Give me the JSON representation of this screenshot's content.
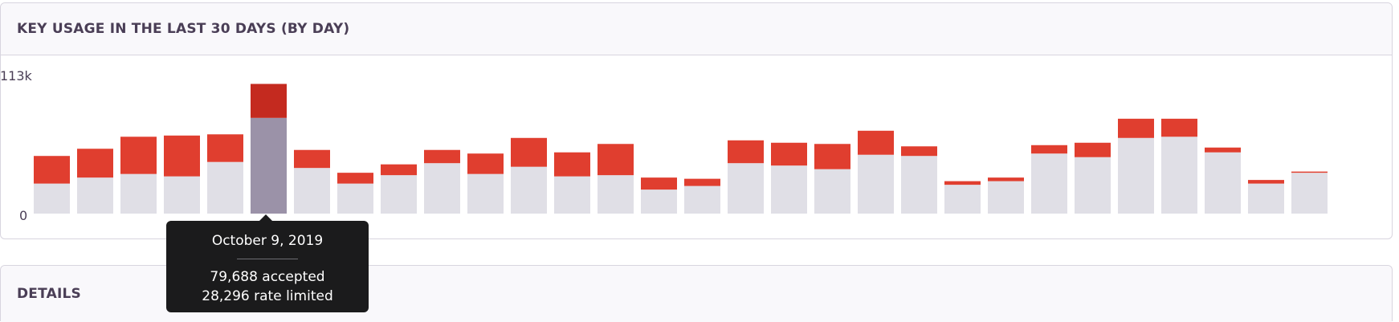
{
  "usage_panel": {
    "title": "KEY USAGE IN THE LAST 30 DAYS (BY DAY)"
  },
  "details_panel": {
    "title": "DETAILS"
  },
  "tooltip": {
    "date": "October 9, 2019",
    "accepted": "79,688 accepted",
    "rate_limited": "28,296 rate limited"
  },
  "colors": {
    "accepted": "#e0dfe6",
    "rate_limited": "#e03e2f",
    "accepted_highlight": "#9b92a8",
    "rate_limited_highlight": "#c42a1f"
  },
  "chart_data": {
    "type": "bar",
    "stacked": true,
    "title": "KEY USAGE IN THE LAST 30 DAYS (BY DAY)",
    "ylim": [
      0,
      113000
    ],
    "y_tick_labels": [
      "0",
      "113k"
    ],
    "highlighted_index": 5,
    "series": [
      {
        "name": "accepted",
        "values": [
          25000,
          30000,
          33000,
          31000,
          43000,
          79688,
          38000,
          25000,
          32000,
          42000,
          33000,
          39000,
          31000,
          32000,
          20000,
          23000,
          42000,
          40000,
          37000,
          49000,
          48000,
          24000,
          27000,
          50000,
          47000,
          63000,
          64000,
          51000,
          25000,
          34000
        ]
      },
      {
        "name": "rate limited",
        "values": [
          23000,
          24000,
          31000,
          34000,
          23000,
          28296,
          15000,
          9000,
          9000,
          11000,
          17000,
          24000,
          20000,
          26000,
          10000,
          6000,
          19000,
          19000,
          21000,
          20000,
          8000,
          3000,
          3000,
          7000,
          12000,
          16000,
          15000,
          4000,
          3000,
          1000
        ]
      }
    ]
  }
}
